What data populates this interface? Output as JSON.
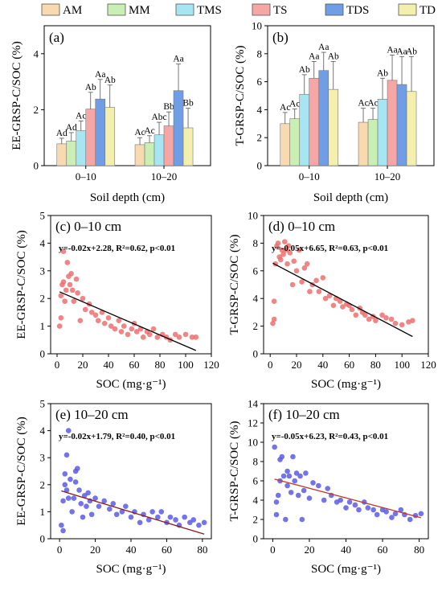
{
  "legend": {
    "items": [
      {
        "label": "AM",
        "color": "#f8d9b0"
      },
      {
        "label": "MM",
        "color": "#c9efb4"
      },
      {
        "label": "TMS",
        "color": "#a6e6f3"
      },
      {
        "label": "TS",
        "color": "#f7a6a6"
      },
      {
        "label": "TDS",
        "color": "#6f9ee6"
      },
      {
        "label": "TD",
        "color": "#f4efac"
      }
    ]
  },
  "chart_data": [
    {
      "type": "bar",
      "panel": "(a)",
      "ylabel": "EE-GRSP-C/SOC (%)",
      "xlabel": "Soil depth (cm)",
      "categories": [
        "0–10",
        "10–20"
      ],
      "ylim": [
        0,
        5
      ],
      "yticks": [
        "0",
        "2",
        "4"
      ],
      "series": [
        {
          "name": "AM",
          "values": [
            0.78,
            0.75
          ],
          "errors": [
            0.2,
            0.25
          ],
          "labels": [
            "Ad",
            "Ac"
          ]
        },
        {
          "name": "MM",
          "values": [
            0.88,
            0.82
          ],
          "errors": [
            0.3,
            0.25
          ],
          "labels": [
            "Ad",
            "Ac"
          ]
        },
        {
          "name": "TMS",
          "values": [
            1.25,
            1.1
          ],
          "errors": [
            0.35,
            0.45
          ],
          "labels": [
            "Ac",
            "Abc"
          ]
        },
        {
          "name": "TS",
          "values": [
            2.02,
            1.42
          ],
          "errors": [
            0.6,
            0.5
          ],
          "labels": [
            "Ab",
            "Bb"
          ]
        },
        {
          "name": "TDS",
          "values": [
            2.38,
            2.68
          ],
          "errors": [
            0.7,
            0.95
          ],
          "labels": [
            "Aa",
            "Aa"
          ]
        },
        {
          "name": "TD",
          "values": [
            2.08,
            1.35
          ],
          "errors": [
            0.8,
            0.7
          ],
          "labels": [
            "Ab",
            "Bb"
          ]
        }
      ]
    },
    {
      "type": "bar",
      "panel": "(b)",
      "ylabel": "T-GRSP-C/SOC (%)",
      "xlabel": "Soil depth (cm)",
      "categories": [
        "0–10",
        "10–20"
      ],
      "ylim": [
        0,
        10
      ],
      "yticks": [
        "0",
        "2",
        "4",
        "6",
        "8",
        "10"
      ],
      "series": [
        {
          "name": "AM",
          "values": [
            3.0,
            3.1
          ],
          "errors": [
            0.8,
            1.0
          ],
          "labels": [
            "Ac",
            "Ac"
          ]
        },
        {
          "name": "MM",
          "values": [
            3.35,
            3.3
          ],
          "errors": [
            0.7,
            0.8
          ],
          "labels": [
            "Ac",
            "Ac"
          ]
        },
        {
          "name": "TMS",
          "values": [
            5.1,
            4.75
          ],
          "errors": [
            1.4,
            1.5
          ],
          "labels": [
            "Ab",
            "Ab"
          ]
        },
        {
          "name": "TS",
          "values": [
            6.25,
            6.1
          ],
          "errors": [
            1.2,
            1.8
          ],
          "labels": [
            "Aa",
            "Aa"
          ]
        },
        {
          "name": "TDS",
          "values": [
            6.8,
            5.8
          ],
          "errors": [
            1.3,
            2.0
          ],
          "labels": [
            "Aa",
            "Aa"
          ]
        },
        {
          "name": "TD",
          "values": [
            5.45,
            5.3
          ],
          "errors": [
            2.0,
            2.5
          ],
          "labels": [
            "Ab",
            "Ab"
          ]
        }
      ]
    },
    {
      "type": "scatter",
      "panel": "(c) 0–10 cm",
      "ylabel": "EE-GRSP-C/SOC (%)",
      "xlabel": "SOC (mg·g⁻¹)",
      "xlim": [
        -5,
        120
      ],
      "ylim": [
        0,
        5
      ],
      "xticks": [
        "0",
        "20",
        "40",
        "60",
        "80",
        "100",
        "120"
      ],
      "yticks": [
        "0",
        "1",
        "2",
        "3",
        "4",
        "5"
      ],
      "equation": "y=-0.02x+2.28, R²=0.62, p<0.01",
      "fit": {
        "slope": -0.02,
        "intercept": 2.28,
        "x": [
          2,
          108
        ]
      },
      "point_color": "#ee6e6e",
      "points": [
        [
          2,
          1.0
        ],
        [
          3,
          1.3
        ],
        [
          3,
          2.1
        ],
        [
          4,
          2.5
        ],
        [
          5,
          3.7
        ],
        [
          5,
          2.6
        ],
        [
          6,
          1.9
        ],
        [
          7,
          2.3
        ],
        [
          8,
          3.3
        ],
        [
          9,
          2.8
        ],
        [
          10,
          2.5
        ],
        [
          11,
          2.9
        ],
        [
          12,
          2.3
        ],
        [
          13,
          1.9
        ],
        [
          15,
          2.7
        ],
        [
          16,
          2.2
        ],
        [
          18,
          1.2
        ],
        [
          20,
          2.0
        ],
        [
          22,
          1.6
        ],
        [
          25,
          1.8
        ],
        [
          27,
          1.5
        ],
        [
          30,
          1.4
        ],
        [
          32,
          1.2
        ],
        [
          35,
          1.5
        ],
        [
          37,
          1.1
        ],
        [
          40,
          1.3
        ],
        [
          42,
          1.0
        ],
        [
          45,
          0.9
        ],
        [
          48,
          1.2
        ],
        [
          50,
          0.8
        ],
        [
          52,
          1.0
        ],
        [
          55,
          0.7
        ],
        [
          58,
          0.9
        ],
        [
          60,
          1.1
        ],
        [
          62,
          0.8
        ],
        [
          65,
          0.9
        ],
        [
          67,
          0.6
        ],
        [
          70,
          0.8
        ],
        [
          72,
          0.7
        ],
        [
          75,
          0.9
        ],
        [
          78,
          0.6
        ],
        [
          82,
          0.7
        ],
        [
          85,
          0.6
        ],
        [
          88,
          0.5
        ],
        [
          92,
          0.7
        ],
        [
          95,
          0.6
        ],
        [
          100,
          0.7
        ],
        [
          105,
          0.6
        ],
        [
          108,
          0.6
        ]
      ]
    },
    {
      "type": "scatter",
      "panel": "(d) 0–10 cm",
      "ylabel": "T-GRSP-C/SOC (%)",
      "xlabel": "SOC (mg·g⁻¹)",
      "xlim": [
        -5,
        120
      ],
      "ylim": [
        0,
        10
      ],
      "xticks": [
        "0",
        "20",
        "40",
        "60",
        "80",
        "100",
        "120"
      ],
      "yticks": [
        "0",
        "2",
        "4",
        "6",
        "8",
        "10"
      ],
      "equation": "y=-0.05x+6.65, R²=0.63, p<0.01",
      "fit": {
        "slope": -0.05,
        "intercept": 6.65,
        "x": [
          2,
          108
        ]
      },
      "point_color": "#ee6e6e",
      "points": [
        [
          2,
          2.2
        ],
        [
          3,
          2.5
        ],
        [
          3,
          3.8
        ],
        [
          4,
          6.5
        ],
        [
          5,
          7.8
        ],
        [
          6,
          8.0
        ],
        [
          7,
          7.0
        ],
        [
          8,
          6.8
        ],
        [
          9,
          7.5
        ],
        [
          10,
          7.2
        ],
        [
          11,
          8.1
        ],
        [
          12,
          7.5
        ],
        [
          13,
          6.5
        ],
        [
          14,
          7.8
        ],
        [
          15,
          7.3
        ],
        [
          17,
          5.0
        ],
        [
          18,
          6.7
        ],
        [
          20,
          6.0
        ],
        [
          22,
          7.5
        ],
        [
          24,
          5.2
        ],
        [
          26,
          6.2
        ],
        [
          28,
          6.5
        ],
        [
          30,
          4.5
        ],
        [
          32,
          5.0
        ],
        [
          35,
          5.3
        ],
        [
          37,
          4.5
        ],
        [
          40,
          5.5
        ],
        [
          42,
          4.0
        ],
        [
          45,
          4.2
        ],
        [
          48,
          3.5
        ],
        [
          50,
          4.0
        ],
        [
          53,
          3.8
        ],
        [
          55,
          3.4
        ],
        [
          58,
          3.6
        ],
        [
          60,
          3.5
        ],
        [
          62,
          3.2
        ],
        [
          65,
          2.8
        ],
        [
          68,
          3.3
        ],
        [
          70,
          3.0
        ],
        [
          72,
          2.8
        ],
        [
          75,
          2.5
        ],
        [
          78,
          2.7
        ],
        [
          80,
          2.4
        ],
        [
          85,
          2.8
        ],
        [
          88,
          2.6
        ],
        [
          92,
          2.5
        ],
        [
          95,
          2.2
        ],
        [
          100,
          2.1
        ],
        [
          105,
          2.3
        ],
        [
          108,
          2.4
        ]
      ]
    },
    {
      "type": "scatter",
      "panel": "(e) 10–20 cm",
      "ylabel": "EE-GRSP-C/SOC (%)",
      "xlabel": "SOC (mg·g⁻¹)",
      "xlim": [
        -5,
        85
      ],
      "ylim": [
        0,
        5
      ],
      "xticks": [
        "0",
        "20",
        "40",
        "60",
        "80"
      ],
      "yticks": [
        "0",
        "1",
        "2",
        "3",
        "4",
        "5"
      ],
      "equation": "y=-0.02x+1.79, R²=0.40, p<0.01",
      "fit": {
        "slope": -0.02,
        "intercept": 1.79,
        "x": [
          1,
          81
        ]
      },
      "point_color": "#5a5ae8",
      "points": [
        [
          1,
          0.5
        ],
        [
          2,
          0.3
        ],
        [
          2,
          1.4
        ],
        [
          3,
          2.0
        ],
        [
          3,
          2.4
        ],
        [
          4,
          1.8
        ],
        [
          4,
          3.1
        ],
        [
          5,
          4.0
        ],
        [
          5,
          1.5
        ],
        [
          6,
          2.2
        ],
        [
          7,
          1.0
        ],
        [
          8,
          1.5
        ],
        [
          9,
          2.5
        ],
        [
          9,
          2.1
        ],
        [
          10,
          2.6
        ],
        [
          11,
          1.8
        ],
        [
          12,
          1.3
        ],
        [
          13,
          0.8
        ],
        [
          14,
          1.6
        ],
        [
          15,
          1.2
        ],
        [
          16,
          1.7
        ],
        [
          17,
          1.4
        ],
        [
          18,
          0.9
        ],
        [
          20,
          1.5
        ],
        [
          22,
          1.2
        ],
        [
          25,
          1.4
        ],
        [
          28,
          1.1
        ],
        [
          30,
          1.3
        ],
        [
          32,
          0.9
        ],
        [
          35,
          1.0
        ],
        [
          37,
          1.2
        ],
        [
          40,
          0.8
        ],
        [
          42,
          1.0
        ],
        [
          45,
          0.6
        ],
        [
          47,
          0.9
        ],
        [
          50,
          0.7
        ],
        [
          52,
          1.0
        ],
        [
          55,
          0.8
        ],
        [
          57,
          1.0
        ],
        [
          60,
          0.6
        ],
        [
          62,
          0.8
        ],
        [
          65,
          0.7
        ],
        [
          67,
          0.5
        ],
        [
          70,
          0.8
        ],
        [
          73,
          0.6
        ],
        [
          75,
          0.7
        ],
        [
          78,
          0.5
        ],
        [
          81,
          0.6
        ]
      ]
    },
    {
      "type": "scatter",
      "panel": "(f) 10–20 cm",
      "ylabel": "T-GRSP-C/SOC (%)",
      "xlabel": "SOC (mg·g⁻¹)",
      "xlim": [
        -5,
        85
      ],
      "ylim": [
        0,
        14
      ],
      "xticks": [
        "0",
        "20",
        "40",
        "60",
        "80"
      ],
      "yticks": [
        "0",
        "2",
        "4",
        "6",
        "8",
        "10",
        "12",
        "14"
      ],
      "equation": "y=-0.05x+6.23, R²=0.43, p<0.01",
      "fit": {
        "slope": -0.05,
        "intercept": 6.23,
        "x": [
          1,
          81
        ]
      },
      "point_color": "#5a5ae8",
      "points": [
        [
          1,
          9.5
        ],
        [
          2,
          2.5
        ],
        [
          2,
          3.8
        ],
        [
          3,
          4.5
        ],
        [
          4,
          8.2
        ],
        [
          4,
          6.0
        ],
        [
          5,
          8.5
        ],
        [
          6,
          6.5
        ],
        [
          7,
          2.0
        ],
        [
          8,
          5.5
        ],
        [
          8,
          7.0
        ],
        [
          9,
          6.5
        ],
        [
          10,
          4.8
        ],
        [
          11,
          8.5
        ],
        [
          12,
          6.0
        ],
        [
          13,
          6.8
        ],
        [
          14,
          4.5
        ],
        [
          15,
          6.5
        ],
        [
          16,
          2.0
        ],
        [
          17,
          5.0
        ],
        [
          18,
          6.8
        ],
        [
          20,
          4.2
        ],
        [
          22,
          5.8
        ],
        [
          25,
          5.5
        ],
        [
          28,
          4.0
        ],
        [
          30,
          5.2
        ],
        [
          32,
          4.5
        ],
        [
          35,
          3.8
        ],
        [
          37,
          4.0
        ],
        [
          40,
          3.2
        ],
        [
          42,
          3.8
        ],
        [
          45,
          3.5
        ],
        [
          47,
          3.0
        ],
        [
          50,
          3.8
        ],
        [
          52,
          3.2
        ],
        [
          55,
          3.0
        ],
        [
          57,
          2.5
        ],
        [
          60,
          3.0
        ],
        [
          62,
          2.8
        ],
        [
          65,
          2.2
        ],
        [
          67,
          2.6
        ],
        [
          70,
          3.0
        ],
        [
          72,
          2.5
        ],
        [
          75,
          2.0
        ],
        [
          78,
          2.4
        ],
        [
          81,
          2.6
        ]
      ]
    }
  ]
}
